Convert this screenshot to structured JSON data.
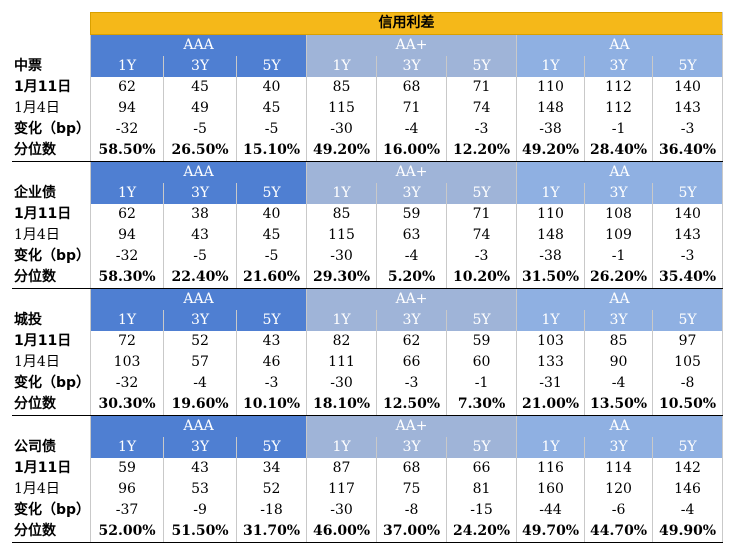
{
  "title": "信用利差",
  "ratings": [
    "AAA",
    "AA+",
    "AA"
  ],
  "tenors": [
    "1Y",
    "3Y",
    "5Y"
  ],
  "row_labels": {
    "current": "1月11日",
    "previous": "1月4日",
    "change": "变化（bp）",
    "percentile": "分位数"
  },
  "colors": {
    "title_bg": "#f5b819",
    "aaa_bg": "#4f7fd2",
    "aa_plus_bg": "#9fb4d8",
    "aa_bg": "#8fb0e2"
  },
  "sections": [
    {
      "name": "中票",
      "current": [
        "62",
        "45",
        "40",
        "85",
        "68",
        "71",
        "110",
        "112",
        "140"
      ],
      "previous": [
        "94",
        "49",
        "45",
        "115",
        "71",
        "74",
        "148",
        "112",
        "143"
      ],
      "change": [
        "-32",
        "-5",
        "-5",
        "-30",
        "-4",
        "-3",
        "-38",
        "-1",
        "-3"
      ],
      "percentile": [
        "58.50%",
        "26.50%",
        "15.10%",
        "49.20%",
        "16.00%",
        "12.20%",
        "49.20%",
        "28.40%",
        "36.40%"
      ]
    },
    {
      "name": "企业债",
      "current": [
        "62",
        "38",
        "40",
        "85",
        "59",
        "71",
        "110",
        "108",
        "140"
      ],
      "previous": [
        "94",
        "43",
        "45",
        "115",
        "63",
        "74",
        "148",
        "109",
        "143"
      ],
      "change": [
        "-32",
        "-5",
        "-5",
        "-30",
        "-4",
        "-3",
        "-38",
        "-1",
        "-3"
      ],
      "percentile": [
        "58.30%",
        "22.40%",
        "21.60%",
        "29.30%",
        "5.20%",
        "10.20%",
        "31.50%",
        "26.20%",
        "35.40%"
      ]
    },
    {
      "name": "城投",
      "current": [
        "72",
        "52",
        "43",
        "82",
        "62",
        "59",
        "103",
        "85",
        "97"
      ],
      "previous": [
        "103",
        "57",
        "46",
        "111",
        "66",
        "60",
        "133",
        "90",
        "105"
      ],
      "change": [
        "-32",
        "-4",
        "-3",
        "-30",
        "-3",
        "-1",
        "-31",
        "-4",
        "-8"
      ],
      "percentile": [
        "30.30%",
        "19.60%",
        "10.10%",
        "18.10%",
        "12.50%",
        "7.30%",
        "21.00%",
        "13.50%",
        "10.50%"
      ]
    },
    {
      "name": "公司债",
      "current": [
        "59",
        "43",
        "34",
        "87",
        "68",
        "66",
        "116",
        "114",
        "142"
      ],
      "previous": [
        "96",
        "53",
        "52",
        "117",
        "75",
        "81",
        "160",
        "120",
        "146"
      ],
      "change": [
        "-37",
        "-9",
        "-18",
        "-30",
        "-8",
        "-15",
        "-44",
        "-6",
        "-4"
      ],
      "percentile": [
        "52.00%",
        "51.50%",
        "31.70%",
        "46.00%",
        "37.00%",
        "24.20%",
        "49.70%",
        "44.70%",
        "49.90%"
      ]
    }
  ]
}
